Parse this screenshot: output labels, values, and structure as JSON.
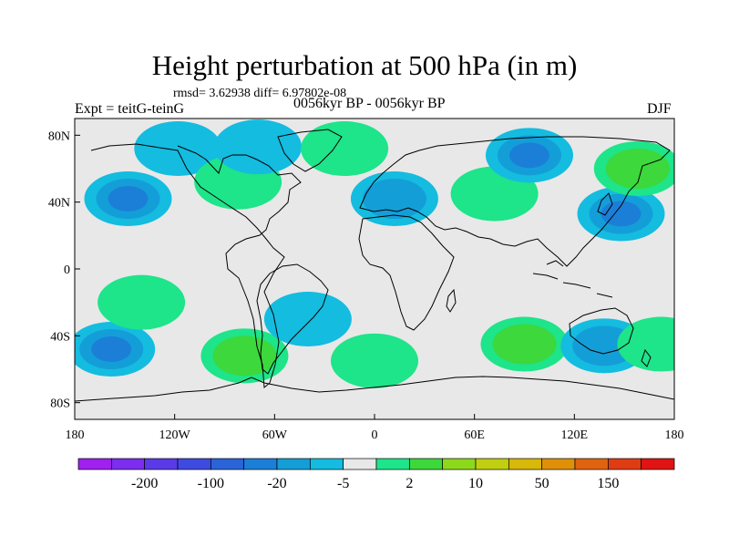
{
  "chart_data": {
    "type": "heatmap",
    "title": "Height perturbation at 500 hPa (in m)",
    "left_string": "Expt = teitG-teinG",
    "center_string": "0056kyr BP - 0056kyr BP",
    "right_string": "DJF",
    "stats_string": "rmsd= 3.62938 diff= 6.97802e-08",
    "x_ticks": [
      "180",
      "120W",
      "60W",
      "0",
      "60E",
      "120E",
      "180"
    ],
    "x_tick_lon": [
      -180,
      -120,
      -60,
      0,
      60,
      120,
      180
    ],
    "y_ticks": [
      "80N",
      "40N",
      "0",
      "40S",
      "80S"
    ],
    "y_tick_lat": [
      80,
      40,
      0,
      -40,
      -80
    ],
    "xlim": [
      -180,
      180
    ],
    "ylim": [
      -90,
      90
    ],
    "colorbar": {
      "labels": [
        "-200",
        "-100",
        "-20",
        "-5",
        "2",
        "10",
        "50",
        "150"
      ],
      "label_after_box": [
        1,
        3,
        5,
        7,
        9,
        11,
        13,
        15
      ],
      "colors": [
        "#a020f0",
        "#7c2df0",
        "#5a3ae8",
        "#3f4be0",
        "#2a64d8",
        "#1b7fd8",
        "#149ed8",
        "#14bce0",
        "#e8e8e8",
        "#1ee48a",
        "#3cd83c",
        "#8ed81c",
        "#c0d010",
        "#d8b808",
        "#e09008",
        "#e06410",
        "#e03c14",
        "#e01414"
      ]
    },
    "anomalies": [
      {
        "lon": -148,
        "lat": 42,
        "value": -22,
        "level": 3
      },
      {
        "lon": -118,
        "lat": 72,
        "value": -6,
        "level": 1
      },
      {
        "lon": -82,
        "lat": 52,
        "value": 3,
        "level": 1
      },
      {
        "lon": -70,
        "lat": 73,
        "value": -4,
        "level": 1
      },
      {
        "lon": -18,
        "lat": 72,
        "value": 5,
        "level": 1
      },
      {
        "lon": 12,
        "lat": 42,
        "value": -12,
        "level": 2
      },
      {
        "lon": 72,
        "lat": 45,
        "value": 5,
        "level": 1
      },
      {
        "lon": 93,
        "lat": 68,
        "value": -18,
        "level": 3
      },
      {
        "lon": 148,
        "lat": 33,
        "value": -15,
        "level": 3
      },
      {
        "lon": 158,
        "lat": 60,
        "value": 8,
        "level": 2
      },
      {
        "lon": -158,
        "lat": -48,
        "value": -25,
        "level": 3
      },
      {
        "lon": -78,
        "lat": -52,
        "value": 7,
        "level": 2
      },
      {
        "lon": -40,
        "lat": -30,
        "value": -4,
        "level": 1
      },
      {
        "lon": 0,
        "lat": -55,
        "value": 3,
        "level": 1
      },
      {
        "lon": 90,
        "lat": -45,
        "value": 12,
        "level": 2
      },
      {
        "lon": 138,
        "lat": -46,
        "value": -10,
        "level": 2
      },
      {
        "lon": 172,
        "lat": -45,
        "value": 4,
        "level": 1
      },
      {
        "lon": -140,
        "lat": -20,
        "value": 3,
        "level": 1
      }
    ]
  }
}
